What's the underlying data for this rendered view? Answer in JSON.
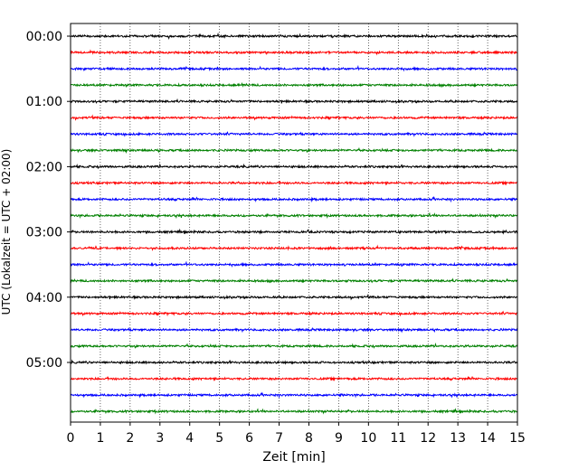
{
  "chart_data": {
    "type": "line",
    "title": "",
    "xlabel": "Zeit  [min]",
    "ylabel": "UTC (Lokalzeit = UTC + 02:00)",
    "xlim": [
      0,
      15
    ],
    "x_ticks": [
      "0",
      "1",
      "2",
      "3",
      "4",
      "5",
      "6",
      "7",
      "8",
      "9",
      "10",
      "11",
      "12",
      "13",
      "14",
      "15"
    ],
    "y_ticks": [
      "00:00",
      "01:00",
      "02:00",
      "03:00",
      "04:00",
      "05:00"
    ],
    "trace_interval_min": 15,
    "trace_count": 24,
    "trace_colors": [
      "#000000",
      "#ff0000",
      "#0000ff",
      "#008000"
    ],
    "grid": "vertical-dotted"
  }
}
